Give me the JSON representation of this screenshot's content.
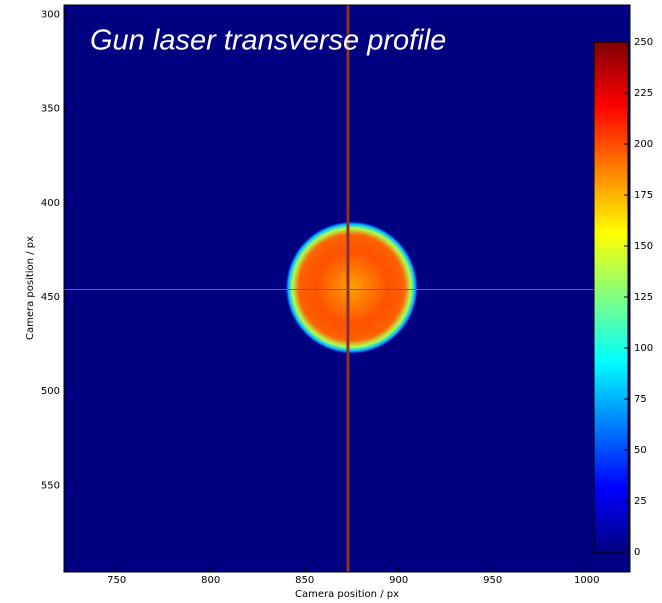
{
  "chart_data": {
    "type": "image",
    "title": "Gun laser transverse profile",
    "x_label": "Camera position / px",
    "y_label": "Camera position / px",
    "xlim": [
      722,
      1023
    ],
    "xticks": [
      750,
      800,
      850,
      900,
      950,
      1000
    ],
    "ylim": [
      596,
      295
    ],
    "yticks": [
      300,
      350,
      400,
      450,
      500,
      550
    ],
    "colormap": "jet",
    "clim": [
      0,
      250
    ],
    "cticks": [
      0,
      25,
      50,
      75,
      100,
      125,
      150,
      175,
      200,
      225,
      250
    ],
    "spot": {
      "x": 875,
      "y": 445,
      "radius": 35,
      "level": 195
    },
    "crosshair": {
      "x": 873,
      "y": 446,
      "x_color": "#8b3030",
      "y_color": "#2e8b2e"
    }
  }
}
